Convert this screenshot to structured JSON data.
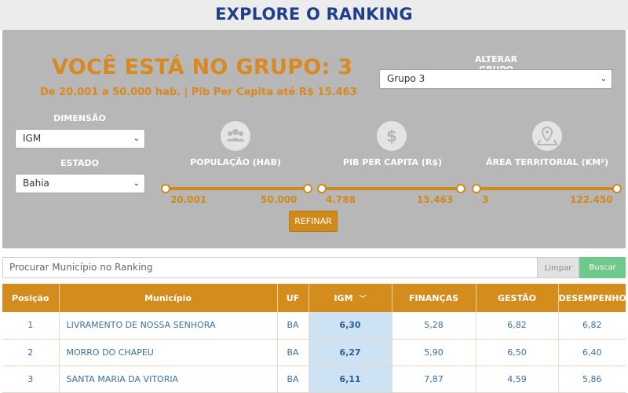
{
  "page_title": "EXPLORE O RANKING",
  "group": {
    "title": "VOCÊ ESTÁ NO GRUPO: 3",
    "subtitle": "De 20.001 a 50.000 hab. | Pib Per Capita até R$ 15.463"
  },
  "alterar_grupo": {
    "label": "ALTERAR GRUPO",
    "selected": "Grupo 3"
  },
  "dimensao": {
    "label": "DIMENSÃO",
    "selected": "IGM"
  },
  "estado": {
    "label": "ESTADO",
    "selected": "Bahia"
  },
  "metrics": [
    {
      "label": "POPULAÇÃO (HAB)",
      "icon": "people-icon",
      "min": "20.001",
      "max": "50.000",
      "range_fraction": [
        0.0,
        1.0
      ]
    },
    {
      "label": "PIB PER CAPITA (R$)",
      "icon": "dollar-icon",
      "min": "4.788",
      "max": "15.463",
      "range_fraction": [
        0.0,
        1.0
      ]
    },
    {
      "label": "ÁREA TERRITORIAL (KM²)",
      "icon": "map-pin-icon",
      "min": "3",
      "max": "122.450",
      "range_fraction": [
        0.0,
        1.0
      ]
    }
  ],
  "refinar_label": "REFINAR",
  "search": {
    "placeholder": "Procurar Município no Ranking",
    "clear_label": "Limpar",
    "search_label": "Buscar"
  },
  "table": {
    "headers": [
      "Posição",
      "Município",
      "UF",
      "IGM",
      "FINANÇAS",
      "GESTÃO",
      "DESEMPENHO"
    ],
    "sort_indicator": "﹀",
    "rows": [
      {
        "pos": "1",
        "municipio": "LIVRAMENTO DE NOSSA SENHORA",
        "uf": "BA",
        "igm": "6,30",
        "financas": "5,28",
        "gestao": "6,82",
        "desempenho": "6,82"
      },
      {
        "pos": "2",
        "municipio": "MORRO DO CHAPEU",
        "uf": "BA",
        "igm": "6,27",
        "financas": "5,90",
        "gestao": "6,50",
        "desempenho": "6,40"
      },
      {
        "pos": "3",
        "municipio": "SANTA MARIA DA VITORIA",
        "uf": "BA",
        "igm": "6,11",
        "financas": "7,87",
        "gestao": "4,59",
        "desempenho": "5,86"
      }
    ]
  },
  "colors": {
    "accent": "#d08a1a",
    "title_blue": "#1f3f8a",
    "panel_gray": "#b7b7b7",
    "buscar_green": "#6ec98a",
    "igm_highlight": "#cde2f3"
  }
}
